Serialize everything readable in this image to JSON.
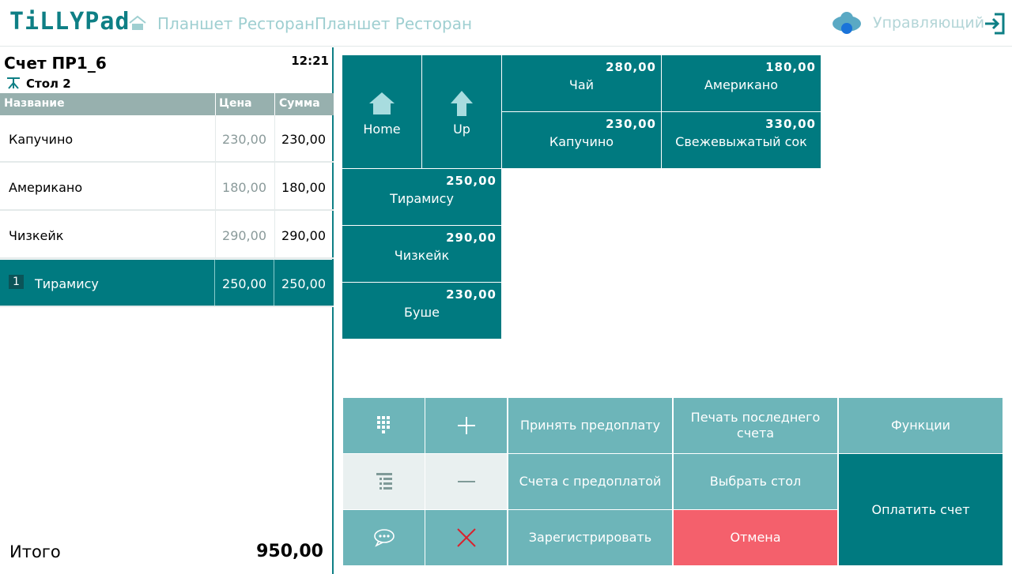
{
  "header": {
    "logo": "TiLLYPad",
    "crumbs": [
      "Планшет Ресторан",
      "Планшет Ресторан"
    ],
    "user": "Управляющий"
  },
  "order": {
    "title": "Счет ПР1_6",
    "time": "12:21",
    "table": "Стол 2",
    "columns": [
      "Название",
      "Цена",
      "Сумма"
    ],
    "rows": [
      {
        "name": "Капучино",
        "price": "230,00",
        "sum": "230,00"
      },
      {
        "name": "Американо",
        "price": "180,00",
        "sum": "180,00"
      },
      {
        "name": "Чизкейк",
        "price": "290,00",
        "sum": "290,00"
      },
      {
        "qty": "1",
        "name": "Тирамису",
        "price": "250,00",
        "sum": "250,00",
        "selected": true
      }
    ],
    "total_label": "Итого",
    "total": "950,00"
  },
  "menu": {
    "home": "Home",
    "up": "Up",
    "items": [
      {
        "name": "Чай",
        "price": "280,00"
      },
      {
        "name": "Американо",
        "price": "180,00"
      },
      {
        "name": "Капучино",
        "price": "230,00"
      },
      {
        "name": "Свежевыжатый сок",
        "price": "330,00"
      },
      {
        "name": "Тирамису",
        "price": "250,00"
      },
      {
        "name": "Чизкейк",
        "price": "290,00"
      },
      {
        "name": "Буше",
        "price": "230,00"
      }
    ]
  },
  "actions": {
    "prepay": "Принять предоплату",
    "print_last": "Печать последнего счета",
    "functions": "Функции",
    "prepaid_bills": "Счета с предоплатой",
    "choose_table": "Выбрать стол",
    "pay": "Оплатить счет",
    "register": "Зарегистрировать",
    "cancel": "Отмена"
  },
  "colors": {
    "accent": "#007a80",
    "light": "#6db5b9",
    "cancel": "#f4606c"
  }
}
